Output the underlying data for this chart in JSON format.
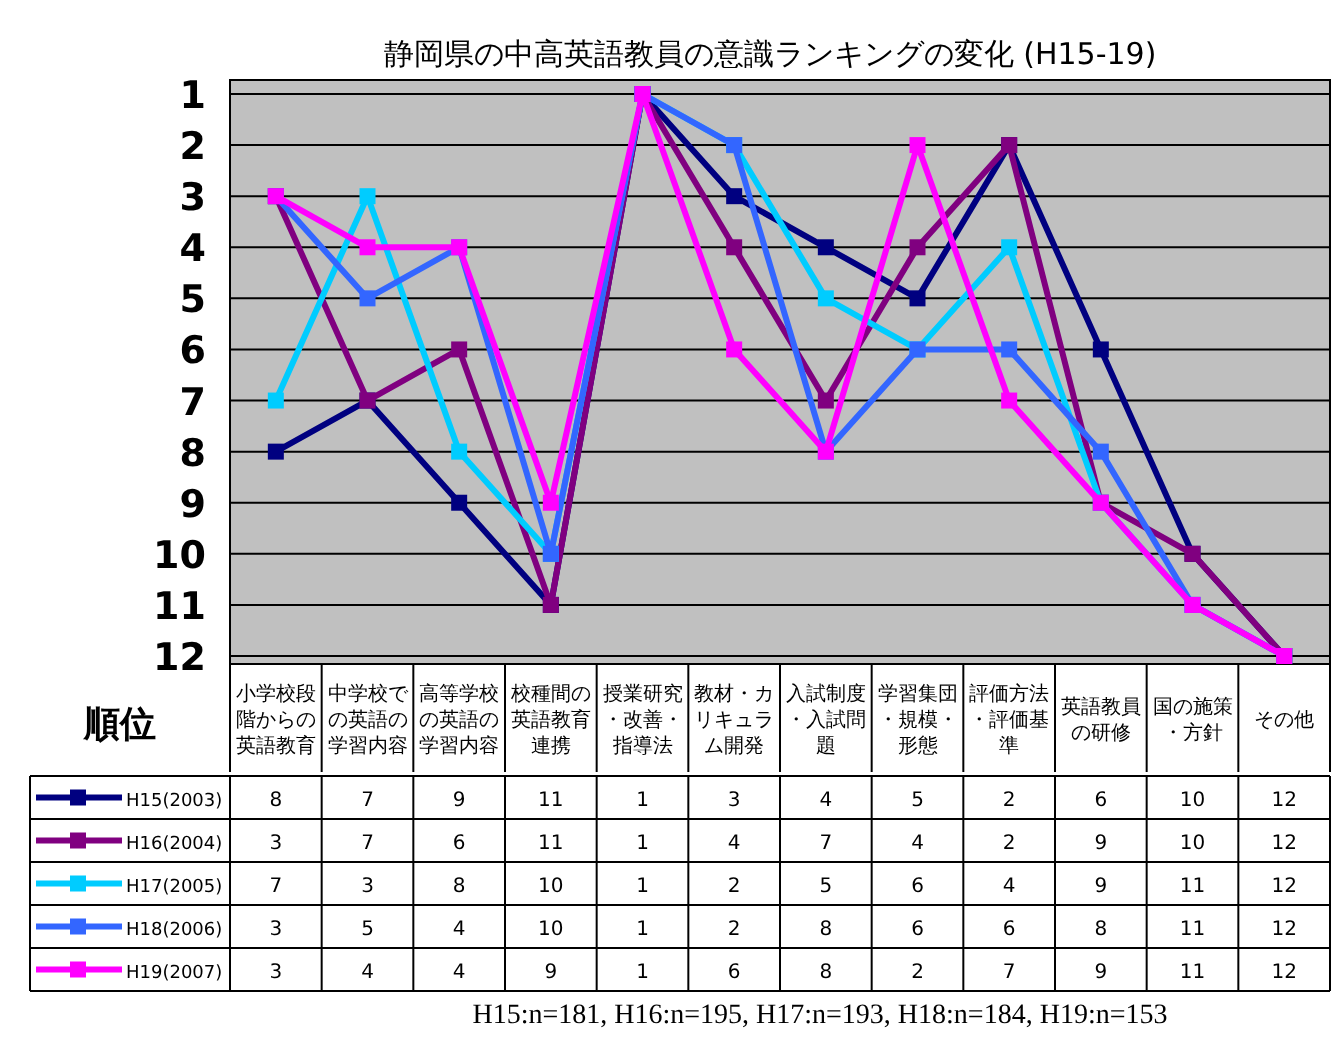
{
  "chart_data": {
    "type": "line",
    "title": "静岡県の中高英語教員の意識ランキングの変化 (H15-19)",
    "ylabel": "順位",
    "categories": [
      "小学校段階からの英語教育",
      "中学校での英語の学習内容",
      "高等学校の英語の学習内容",
      "校種間の英語教育連携",
      "授業研究・改善・指導法",
      "教材・カリキュラム開発",
      "入試制度・入試問題",
      "学習集団・規模・形態",
      "評価方法・評価基準",
      "英語教員の研修",
      "国の施策・方針",
      "その他"
    ],
    "series": [
      {
        "name": "H15(2003)",
        "color": "#000080",
        "values": [
          8,
          7,
          9,
          11,
          1,
          3,
          4,
          5,
          2,
          6,
          10,
          12
        ]
      },
      {
        "name": "H16(2004)",
        "color": "#800080",
        "values": [
          3,
          7,
          6,
          11,
          1,
          4,
          7,
          4,
          2,
          9,
          10,
          12
        ]
      },
      {
        "name": "H17(2005)",
        "color": "#00ccff",
        "values": [
          7,
          3,
          8,
          10,
          1,
          2,
          5,
          6,
          4,
          9,
          11,
          12
        ]
      },
      {
        "name": "H18(2006)",
        "color": "#3366ff",
        "values": [
          3,
          5,
          4,
          10,
          1,
          2,
          8,
          6,
          6,
          8,
          11,
          12
        ]
      },
      {
        "name": "H19(2007)",
        "color": "#ff00ff",
        "values": [
          3,
          4,
          4,
          9,
          1,
          6,
          8,
          2,
          7,
          9,
          11,
          12
        ]
      }
    ],
    "ylim": [
      12,
      1
    ],
    "yticks": [
      1,
      2,
      3,
      4,
      5,
      6,
      7,
      8,
      9,
      10,
      11,
      12
    ],
    "grid": "y",
    "marker": "square",
    "line_style": "solid",
    "legend": "bottom left",
    "data_labels": true,
    "annotations": [
      "H15:n=181, H16:n=195, H17:n=193, H18:n=184, H19:n=153"
    ]
  }
}
